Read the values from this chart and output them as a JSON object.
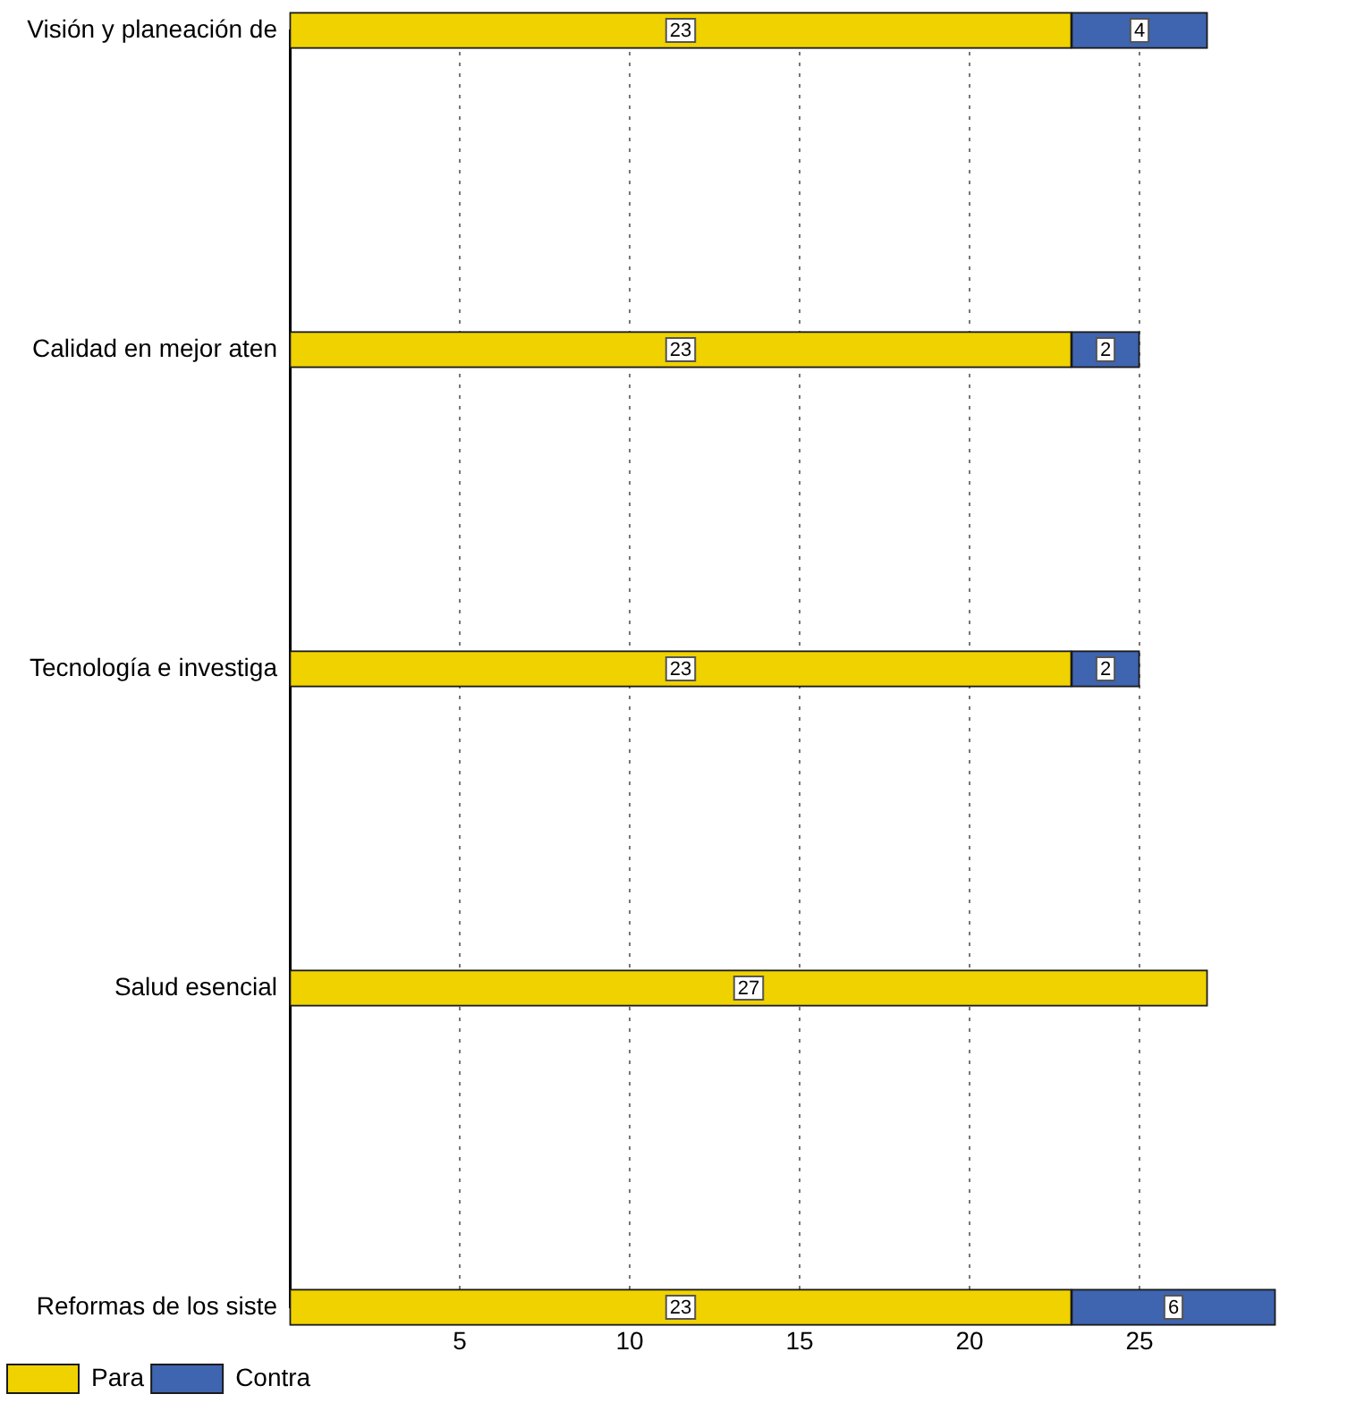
{
  "chart_data": {
    "type": "bar",
    "orientation": "horizontal",
    "stacked": true,
    "categories": [
      "Visión y planeación de",
      "Calidad en mejor aten",
      "Tecnología e investiga",
      "Salud esencial",
      "Reformas de los siste"
    ],
    "series": [
      {
        "name": "Para",
        "color": "#f0d200",
        "values": [
          23,
          23,
          23,
          27,
          23
        ]
      },
      {
        "name": "Contra",
        "color": "#3f64b0",
        "values": [
          4,
          2,
          2,
          null,
          6
        ]
      }
    ],
    "xlim": [
      0,
      29
    ],
    "xticks": [
      5,
      10,
      15,
      20,
      25
    ],
    "grid": "x",
    "legend": "bottom left",
    "data_labels": true
  }
}
